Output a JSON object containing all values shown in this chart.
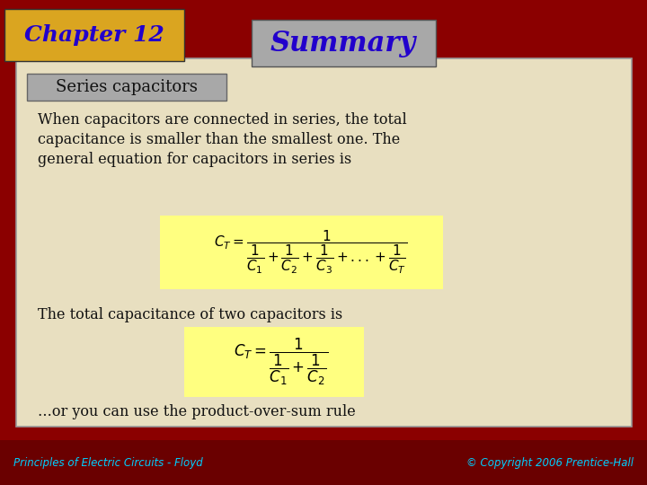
{
  "bg_color": "#8B0000",
  "slide_bg": "#E8DFC0",
  "chapter_box_color": "#DAA520",
  "chapter_text": "Chapter 12",
  "chapter_text_color": "#2200CC",
  "summary_box_color": "#A8A8A8",
  "summary_text": "Summary",
  "summary_text_color": "#2200CC",
  "section_box_color": "#A8A8A8",
  "section_text": "Series capacitors",
  "section_text_color": "#111111",
  "body_text1a": "When capacitors are connected in series, the total",
  "body_text1b": "capacitance is smaller than the smallest one. The",
  "body_text1c": "general equation for capacitors in series is",
  "body_text2": "The total capacitance of two capacitors is",
  "body_text3": "…or you can use the product-over-sum rule",
  "footer_left": "Principles of Electric Circuits - Floyd",
  "footer_right": "© Copyright 2006 Prentice-Hall",
  "formula_bg": "#FFFF80",
  "body_text_color": "#111111",
  "footer_text_color": "#00CFFF",
  "footer_bg": "#6A0000"
}
